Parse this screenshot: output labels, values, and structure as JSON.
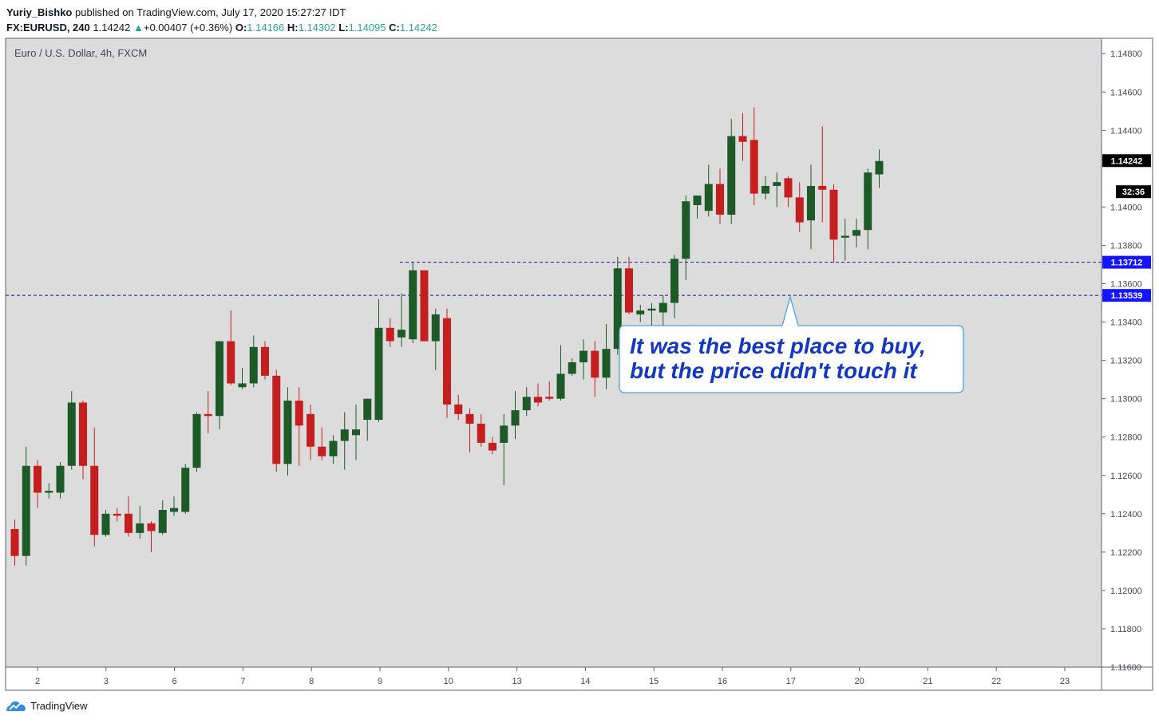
{
  "header": {
    "author": "Yuriy_Bishko",
    "published_text": "published on TradingView.com, July 17, 2020 15:27:27 IDT",
    "symbol": "FX:EURUSD, 240",
    "last": "1.14242",
    "change_arrow": "▲",
    "change": "+0.00407 (+0.36%)",
    "open_label": "O:",
    "open": "1.14166",
    "high_label": "H:",
    "high": "1.14302",
    "low_label": "L:",
    "low": "1.14095",
    "close_label": "C:",
    "close": "1.14242"
  },
  "footer": {
    "brand": "TradingView"
  },
  "colors": {
    "up": "#1e5a28",
    "down": "#c41e1e",
    "background": "#dcdcdc",
    "level_line": "#1a1aa0",
    "callout_text": "#1237c0",
    "callout_border": "#4aa3df"
  },
  "chart_data": {
    "type": "candlestick",
    "title": "Euro / U.S. Dollar, 4h, FXCM",
    "ylim": [
      1.116,
      1.1488
    ],
    "y_ticks": [
      "1.14800",
      "1.14600",
      "1.14400",
      "1.14000",
      "1.13800",
      "1.13600",
      "1.13400",
      "1.13200",
      "1.13000",
      "1.12800",
      "1.12600",
      "1.12400",
      "1.12200",
      "1.12000",
      "1.11800",
      "1.11600"
    ],
    "x_ticks": [
      "2",
      "3",
      "6",
      "7",
      "8",
      "9",
      "10",
      "13",
      "14",
      "15",
      "16",
      "17",
      "20",
      "21",
      "22",
      "23"
    ],
    "price_labels": [
      {
        "text": "1.14242",
        "value": 1.14242,
        "style": "dark"
      },
      {
        "text": "32:36",
        "value": 1.1408,
        "style": "dark"
      },
      {
        "text": "1.13712",
        "value": 1.13712,
        "style": "blue"
      },
      {
        "text": "1.13539",
        "value": 1.13539,
        "style": "blue"
      }
    ],
    "levels": [
      {
        "value": 1.13712,
        "from_index": 34
      },
      {
        "value": 1.13539,
        "from_index": 0
      }
    ],
    "callout": {
      "lines": [
        "It was the best place to buy,",
        "but the price didn't touch it"
      ],
      "anchor_index": 70,
      "anchor_value": 1.13539
    },
    "candles": [
      {
        "o": 1.1232,
        "h": 1.1237,
        "l": 1.1213,
        "c": 1.1218
      },
      {
        "o": 1.1218,
        "h": 1.1275,
        "l": 1.1213,
        "c": 1.1265
      },
      {
        "o": 1.1265,
        "h": 1.1268,
        "l": 1.1243,
        "c": 1.1251
      },
      {
        "o": 1.1251,
        "h": 1.1256,
        "l": 1.1248,
        "c": 1.1252
      },
      {
        "o": 1.1251,
        "h": 1.1267,
        "l": 1.1248,
        "c": 1.1265
      },
      {
        "o": 1.1265,
        "h": 1.1304,
        "l": 1.1263,
        "c": 1.1298
      },
      {
        "o": 1.1298,
        "h": 1.1299,
        "l": 1.1258,
        "c": 1.1265
      },
      {
        "o": 1.1265,
        "h": 1.1285,
        "l": 1.1223,
        "c": 1.1229
      },
      {
        "o": 1.1229,
        "h": 1.1242,
        "l": 1.1228,
        "c": 1.124
      },
      {
        "o": 1.124,
        "h": 1.1243,
        "l": 1.1236,
        "c": 1.1239
      },
      {
        "o": 1.124,
        "h": 1.1249,
        "l": 1.1228,
        "c": 1.123
      },
      {
        "o": 1.123,
        "h": 1.1244,
        "l": 1.1227,
        "c": 1.1235
      },
      {
        "o": 1.1235,
        "h": 1.1236,
        "l": 1.122,
        "c": 1.1231
      },
      {
        "o": 1.123,
        "h": 1.1247,
        "l": 1.1229,
        "c": 1.1242
      },
      {
        "o": 1.1241,
        "h": 1.1249,
        "l": 1.1239,
        "c": 1.1243
      },
      {
        "o": 1.1241,
        "h": 1.1266,
        "l": 1.124,
        "c": 1.1264
      },
      {
        "o": 1.1264,
        "h": 1.1293,
        "l": 1.1262,
        "c": 1.1292
      },
      {
        "o": 1.1292,
        "h": 1.1304,
        "l": 1.1282,
        "c": 1.1291
      },
      {
        "o": 1.1291,
        "h": 1.133,
        "l": 1.1284,
        "c": 1.133
      },
      {
        "o": 1.133,
        "h": 1.1346,
        "l": 1.1307,
        "c": 1.1308
      },
      {
        "o": 1.1306,
        "h": 1.1316,
        "l": 1.1305,
        "c": 1.1308
      },
      {
        "o": 1.1308,
        "h": 1.1333,
        "l": 1.1306,
        "c": 1.1327
      },
      {
        "o": 1.1327,
        "h": 1.133,
        "l": 1.131,
        "c": 1.1312
      },
      {
        "o": 1.1312,
        "h": 1.1315,
        "l": 1.1262,
        "c": 1.1266
      },
      {
        "o": 1.1266,
        "h": 1.1306,
        "l": 1.126,
        "c": 1.1299
      },
      {
        "o": 1.1299,
        "h": 1.1306,
        "l": 1.1265,
        "c": 1.1286
      },
      {
        "o": 1.1292,
        "h": 1.1297,
        "l": 1.1268,
        "c": 1.1275
      },
      {
        "o": 1.1275,
        "h": 1.1285,
        "l": 1.1268,
        "c": 1.127
      },
      {
        "o": 1.127,
        "h": 1.1281,
        "l": 1.1266,
        "c": 1.1278
      },
      {
        "o": 1.1278,
        "h": 1.1293,
        "l": 1.1263,
        "c": 1.1284
      },
      {
        "o": 1.1281,
        "h": 1.1297,
        "l": 1.1268,
        "c": 1.1284
      },
      {
        "o": 1.1289,
        "h": 1.13,
        "l": 1.1278,
        "c": 1.13
      },
      {
        "o": 1.1289,
        "h": 1.1352,
        "l": 1.1288,
        "c": 1.1337
      },
      {
        "o": 1.1337,
        "h": 1.1342,
        "l": 1.1327,
        "c": 1.133
      },
      {
        "o": 1.1332,
        "h": 1.1355,
        "l": 1.1327,
        "c": 1.1336
      },
      {
        "o": 1.1331,
        "h": 1.1371,
        "l": 1.1329,
        "c": 1.1367
      },
      {
        "o": 1.1367,
        "h": 1.1367,
        "l": 1.133,
        "c": 1.133
      },
      {
        "o": 1.133,
        "h": 1.1347,
        "l": 1.1315,
        "c": 1.1344
      },
      {
        "o": 1.1342,
        "h": 1.1347,
        "l": 1.129,
        "c": 1.1297
      },
      {
        "o": 1.1297,
        "h": 1.1302,
        "l": 1.1289,
        "c": 1.1292
      },
      {
        "o": 1.1292,
        "h": 1.1295,
        "l": 1.1272,
        "c": 1.1287
      },
      {
        "o": 1.1287,
        "h": 1.1292,
        "l": 1.1275,
        "c": 1.1277
      },
      {
        "o": 1.1277,
        "h": 1.128,
        "l": 1.1271,
        "c": 1.1273
      },
      {
        "o": 1.1277,
        "h": 1.1292,
        "l": 1.1255,
        "c": 1.1286
      },
      {
        "o": 1.1286,
        "h": 1.1304,
        "l": 1.1279,
        "c": 1.1294
      },
      {
        "o": 1.1294,
        "h": 1.1306,
        "l": 1.1291,
        "c": 1.1301
      },
      {
        "o": 1.1301,
        "h": 1.1308,
        "l": 1.1296,
        "c": 1.1298
      },
      {
        "o": 1.1301,
        "h": 1.1309,
        "l": 1.1299,
        "c": 1.13
      },
      {
        "o": 1.13,
        "h": 1.1328,
        "l": 1.1299,
        "c": 1.1313
      },
      {
        "o": 1.1313,
        "h": 1.1321,
        "l": 1.1312,
        "c": 1.1319
      },
      {
        "o": 1.1319,
        "h": 1.1331,
        "l": 1.131,
        "c": 1.1325
      },
      {
        "o": 1.1325,
        "h": 1.133,
        "l": 1.1301,
        "c": 1.1311
      },
      {
        "o": 1.1311,
        "h": 1.1339,
        "l": 1.1305,
        "c": 1.1326
      },
      {
        "o": 1.1326,
        "h": 1.1374,
        "l": 1.1323,
        "c": 1.1368
      },
      {
        "o": 1.1368,
        "h": 1.1374,
        "l": 1.1344,
        "c": 1.1345
      },
      {
        "o": 1.1344,
        "h": 1.1349,
        "l": 1.134,
        "c": 1.1346
      },
      {
        "o": 1.1346,
        "h": 1.135,
        "l": 1.1336,
        "c": 1.1347
      },
      {
        "o": 1.1345,
        "h": 1.1354,
        "l": 1.1325,
        "c": 1.135
      },
      {
        "o": 1.135,
        "h": 1.1375,
        "l": 1.1342,
        "c": 1.1373
      },
      {
        "o": 1.1373,
        "h": 1.1406,
        "l": 1.1362,
        "c": 1.1403
      },
      {
        "o": 1.1401,
        "h": 1.1405,
        "l": 1.1394,
        "c": 1.1406
      },
      {
        "o": 1.1398,
        "h": 1.1422,
        "l": 1.1395,
        "c": 1.1412
      },
      {
        "o": 1.1412,
        "h": 1.142,
        "l": 1.1391,
        "c": 1.1396
      },
      {
        "o": 1.1396,
        "h": 1.1446,
        "l": 1.1391,
        "c": 1.1437
      },
      {
        "o": 1.1437,
        "h": 1.1449,
        "l": 1.1424,
        "c": 1.1434
      },
      {
        "o": 1.1435,
        "h": 1.1452,
        "l": 1.1401,
        "c": 1.1407
      },
      {
        "o": 1.1407,
        "h": 1.1416,
        "l": 1.1404,
        "c": 1.1411
      },
      {
        "o": 1.1411,
        "h": 1.1418,
        "l": 1.14,
        "c": 1.1413
      },
      {
        "o": 1.1415,
        "h": 1.1416,
        "l": 1.14,
        "c": 1.1405
      },
      {
        "o": 1.1405,
        "h": 1.1413,
        "l": 1.1387,
        "c": 1.1392
      },
      {
        "o": 1.1393,
        "h": 1.1422,
        "l": 1.1378,
        "c": 1.1411
      },
      {
        "o": 1.1411,
        "h": 1.1442,
        "l": 1.1392,
        "c": 1.1409
      },
      {
        "o": 1.1409,
        "h": 1.1412,
        "l": 1.1371,
        "c": 1.1383
      },
      {
        "o": 1.1384,
        "h": 1.1394,
        "l": 1.1372,
        "c": 1.1385
      },
      {
        "o": 1.1385,
        "h": 1.1394,
        "l": 1.1379,
        "c": 1.1388
      },
      {
        "o": 1.1388,
        "h": 1.142,
        "l": 1.1378,
        "c": 1.1418
      },
      {
        "o": 1.1417,
        "h": 1.143,
        "l": 1.141,
        "c": 1.1424
      }
    ]
  }
}
